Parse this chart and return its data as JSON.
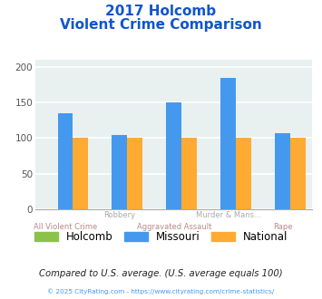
{
  "title_line1": "2017 Holcomb",
  "title_line2": "Violent Crime Comparison",
  "categories": [
    "All Violent Crime",
    "Robbery",
    "Aggravated Assault",
    "Murder & Mans...",
    "Rape"
  ],
  "holcomb": [
    0,
    0,
    0,
    0,
    0
  ],
  "missouri": [
    135,
    105,
    150,
    185,
    107
  ],
  "national": [
    100,
    100,
    100,
    100,
    100
  ],
  "bar_color_holcomb": "#8BC34A",
  "bar_color_missouri": "#4499EE",
  "bar_color_national": "#FFAA33",
  "ylim": [
    0,
    210
  ],
  "yticks": [
    0,
    50,
    100,
    150,
    200
  ],
  "bg_color": "#E8F0F0",
  "grid_color": "#FFFFFF",
  "title_color": "#1155CC",
  "xlabel_color_even": "#BB8888",
  "xlabel_color_odd": "#AAAAAA",
  "legend_labels": [
    "Holcomb",
    "Missouri",
    "National"
  ],
  "footer_text": "Compared to U.S. average. (U.S. average equals 100)",
  "copyright_text": "© 2025 CityRating.com - https://www.cityrating.com/crime-statistics/",
  "footer_color": "#222222",
  "copyright_color": "#4499EE"
}
